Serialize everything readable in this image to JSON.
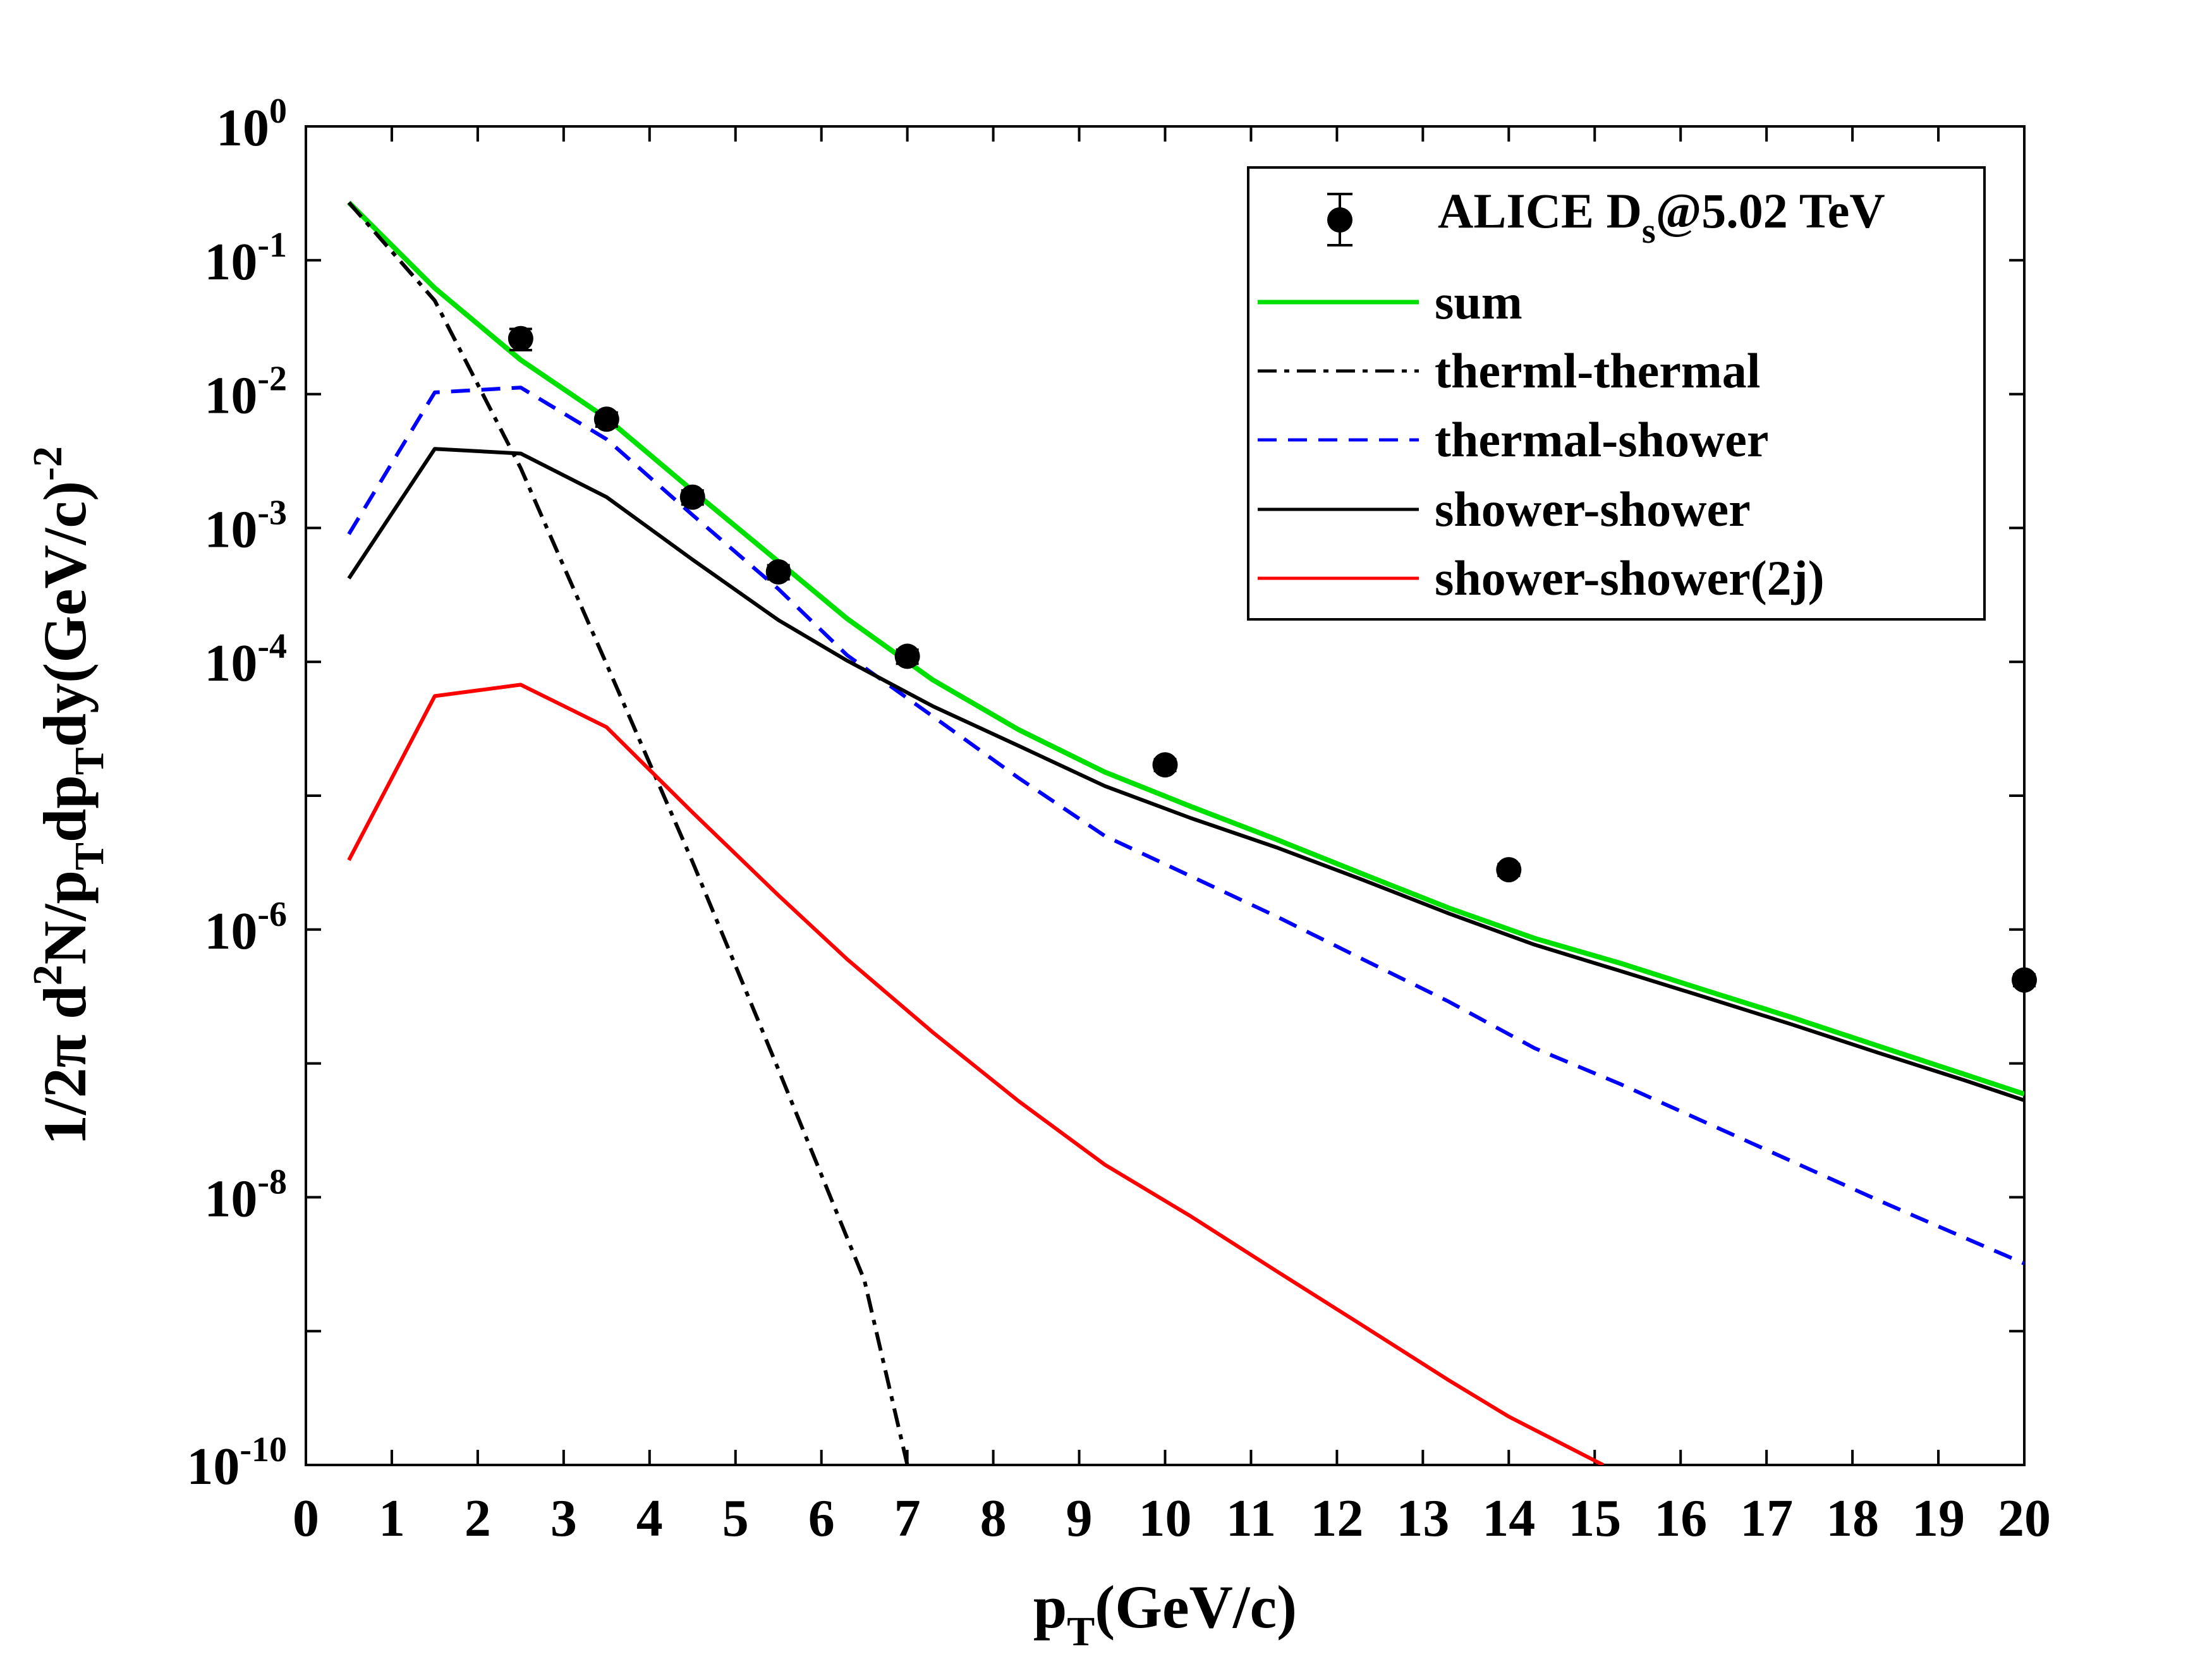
{
  "chart_data": {
    "type": "line",
    "xlabel": {
      "main": "p",
      "sub": "T",
      "rest": "(GeV/c)"
    },
    "ylabel": {
      "prefix": "1/2π d",
      "sup1": "2",
      "mid1": "N/p",
      "sub1": "T",
      "mid2": "dp",
      "sub2": "T",
      "mid3": "dy(GeV/c)",
      "sup2": "-2"
    },
    "xlim": [
      0,
      20
    ],
    "ylim_log10": [
      -10,
      0
    ],
    "yscale": "log",
    "grid": false,
    "legend_position": "top-right",
    "x_ticks": [
      "0",
      "1",
      "2",
      "3",
      "4",
      "5",
      "6",
      "7",
      "8",
      "9",
      "10",
      "11",
      "12",
      "13",
      "14",
      "15",
      "16",
      "17",
      "18",
      "19",
      "20"
    ],
    "y_ticks": [
      {
        "base": "10",
        "exp": "0"
      },
      {
        "base": "10",
        "exp": "-1"
      },
      {
        "base": "10",
        "exp": "-2"
      },
      {
        "base": "10",
        "exp": "-3"
      },
      {
        "base": "10",
        "exp": "-4"
      },
      {
        "base": "10",
        "exp": "-6"
      },
      {
        "base": "10",
        "exp": "-8"
      },
      {
        "base": "10",
        "exp": "-10"
      }
    ],
    "data_points": {
      "name": "ALICE D",
      "name_sub": "s",
      "name_rest": "@5.02 TeV",
      "color": "#000000",
      "x": [
        2.5,
        3.5,
        4.5,
        5.5,
        7.0,
        10.0,
        14.0,
        20.0
      ],
      "y": [
        0.026,
        0.0065,
        0.0017,
        0.00047,
        0.00011,
        1.7e-05,
        2.8e-06,
        4.2e-07
      ],
      "err_rel": [
        0.18,
        0.12,
        0.12,
        0.12,
        0.12,
        0.1,
        0.1,
        0.1
      ]
    },
    "series": [
      {
        "name": "sum",
        "color": "#00e000",
        "dash": "solid",
        "x": [
          0.5,
          1.5,
          2.5,
          3.5,
          4.5,
          5.5,
          6.3,
          7.3,
          8.3,
          9.3,
          10.3,
          11.3,
          12.3,
          13.3,
          14.3,
          15.3,
          16.3,
          17.3,
          18.3,
          19.3,
          20.0
        ],
        "y": [
          0.27,
          0.062,
          0.018,
          0.0066,
          0.0019,
          0.00056,
          0.00021,
          7.3e-05,
          3.1e-05,
          1.5e-05,
          8.3e-06,
          4.7e-06,
          2.6e-06,
          1.45e-06,
          8.6e-07,
          5.6e-07,
          3.5e-07,
          2.2e-07,
          1.35e-07,
          8.3e-08,
          5.9e-08
        ]
      },
      {
        "name": "therml-thermal",
        "color": "#000000",
        "dash": "dashdot",
        "x": [
          0.5,
          1.5,
          2.5,
          3.5,
          4.5,
          5.5,
          6.5,
          7.0
        ],
        "y": [
          0.27,
          0.05,
          0.0028,
          9.6e-05,
          3.2e-06,
          9e-08,
          2.4e-09,
          1e-10
        ]
      },
      {
        "name": "thermal-shower",
        "color": "#0000ff",
        "dash": "dashed",
        "x": [
          0.5,
          1.5,
          2.5,
          3.5,
          4.5,
          5.5,
          6.3,
          7.3,
          8.3,
          9.3,
          10.3,
          11.3,
          12.3,
          13.3,
          14.3,
          15.3,
          16.3,
          17.3,
          18.3,
          19.3,
          20.0
        ],
        "y": [
          0.0009,
          0.0103,
          0.0112,
          0.0046,
          0.00125,
          0.00035,
          0.000112,
          3.9e-05,
          1.35e-05,
          5e-06,
          2.5e-06,
          1.25e-06,
          6e-07,
          2.9e-07,
          1.3e-07,
          7e-08,
          3.6e-08,
          1.85e-08,
          9.5e-09,
          5e-09,
          3.2e-09
        ]
      },
      {
        "name": "shower-shower",
        "color": "#000000",
        "dash": "solid",
        "x": [
          0.5,
          1.5,
          2.5,
          3.5,
          4.5,
          5.5,
          6.3,
          7.3,
          8.3,
          9.3,
          10.3,
          11.3,
          12.3,
          13.3,
          14.3,
          15.3,
          16.3,
          17.3,
          18.3,
          19.3,
          20.0
        ],
        "y": [
          0.00042,
          0.0039,
          0.0036,
          0.0017,
          0.00058,
          0.000205,
          0.000102,
          4.65e-05,
          2.35e-05,
          1.18e-05,
          6.8e-06,
          4.1e-06,
          2.35e-06,
          1.32e-06,
          7.7e-07,
          4.9e-07,
          3.1e-07,
          1.95e-07,
          1.2e-07,
          7.5e-08,
          5.3e-08
        ]
      },
      {
        "name": "shower-shower(2j)",
        "color": "#ff0000",
        "dash": "solid",
        "x": [
          0.5,
          1.5,
          2.5,
          3.5,
          4.5,
          5.5,
          6.3,
          7.3,
          8.3,
          9.3,
          10.3,
          11.3,
          12.3,
          13.3,
          14.0,
          15.1
        ],
        "y": [
          3.3e-06,
          5.55e-05,
          6.75e-05,
          3.25e-05,
          7.5e-06,
          1.8e-06,
          6e-07,
          1.7e-07,
          5.2e-08,
          1.75e-08,
          7.2e-09,
          2.8e-09,
          1.1e-09,
          4.3e-10,
          2.3e-10,
          1e-10
        ]
      }
    ]
  }
}
